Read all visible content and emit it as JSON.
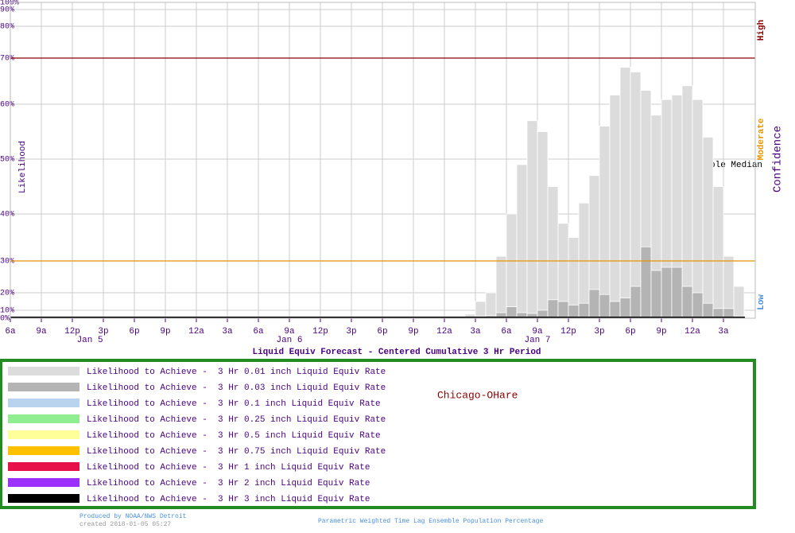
{
  "chart_data": {
    "type": "bar",
    "title": "Liquid Equiv Forecast - Centered Cumulative 3 Hr Period",
    "y_label": "Likelihood",
    "right_label": "Confidence",
    "confidence_labels": [
      {
        "text": "High",
        "color": "#8b0000"
      },
      {
        "text": "Moderate",
        "color": "#e69500"
      },
      {
        "text": "Low",
        "color": "#4a90d9"
      }
    ],
    "annotation": "Ensemble Median",
    "location": "Chicago-OHare",
    "date_labels": [
      "Jan 5",
      "Jan 6",
      "Jan 7"
    ],
    "ylim": [
      0,
      100
    ],
    "yticks": [
      {
        "value": 0,
        "label": "0%"
      },
      {
        "value": 10,
        "label": "10%"
      },
      {
        "value": 20,
        "label": "20%"
      },
      {
        "value": 30,
        "label": "30%"
      },
      {
        "value": 40,
        "label": "40%"
      },
      {
        "value": 50,
        "label": "50%"
      },
      {
        "value": 60,
        "label": "60%"
      },
      {
        "value": 70,
        "label": "70%"
      },
      {
        "value": 80,
        "label": "80%"
      },
      {
        "value": 90,
        "label": "90%"
      },
      {
        "value": 100,
        "label": "100%"
      }
    ],
    "thresholds": [
      {
        "value": 70,
        "color": "#8b0000"
      },
      {
        "value": 30,
        "color": "#e69500"
      }
    ],
    "categories": [
      "6a",
      null,
      null,
      "9a",
      null,
      null,
      "12p",
      null,
      null,
      "3p",
      null,
      null,
      "6p",
      null,
      null,
      "9p",
      null,
      null,
      "12a",
      null,
      null,
      "3a",
      null,
      null,
      "6a",
      null,
      null,
      "9a",
      null,
      null,
      "12p",
      null,
      null,
      "3p",
      null,
      null,
      "6p",
      null,
      null,
      "9p",
      null,
      null,
      "12a",
      null,
      null,
      "3a",
      null,
      null,
      "6a",
      null,
      null,
      "9a",
      null,
      null,
      "12p",
      null,
      null,
      "3p",
      null,
      null,
      "6p",
      null,
      null,
      "9p",
      null,
      null,
      "12a",
      null,
      null,
      "3a",
      null
    ],
    "series": [
      {
        "name": "Likelihood to Achieve -  3 Hr 0.01 inch Liquid Equiv Rate",
        "color": "#dcdcdc",
        "values": [
          1,
          1,
          1,
          1,
          1,
          1,
          1,
          1,
          1,
          1,
          1,
          1,
          1,
          1,
          1,
          1,
          1,
          1,
          1,
          1,
          1,
          1,
          1,
          1,
          1,
          1,
          1,
          1,
          1,
          1,
          1,
          1,
          1,
          1,
          1,
          1,
          1,
          1,
          1,
          1,
          1,
          1,
          1,
          1,
          5,
          15,
          20,
          31,
          40,
          49,
          57,
          55,
          45,
          38,
          35,
          42,
          47,
          56,
          62,
          68,
          67,
          63,
          58,
          61,
          62,
          64,
          61,
          54,
          45,
          31,
          22
        ]
      },
      {
        "name": "Likelihood to Achieve -  3 Hr 0.03 inch Liquid Equiv Rate",
        "color": "#b4b4b4",
        "values": [
          0,
          0,
          0,
          0,
          0,
          0,
          0,
          0,
          0,
          0,
          0,
          0,
          0,
          0,
          0,
          0,
          0,
          0,
          0,
          0,
          0,
          0,
          0,
          0,
          0,
          0,
          0,
          0,
          0,
          0,
          0,
          0,
          0,
          0,
          0,
          0,
          0,
          0,
          0,
          0,
          0,
          0,
          0,
          0,
          1,
          2,
          3,
          7,
          12,
          7,
          6,
          10,
          16,
          15,
          13,
          14,
          21,
          19,
          15,
          17,
          22,
          33,
          27,
          28,
          28,
          22,
          20,
          14,
          11,
          11,
          2
        ]
      },
      {
        "name": "Likelihood to Achieve -  3 Hr 0.1 inch Liquid Equiv Rate",
        "color": "#b9d3ee"
      },
      {
        "name": "Likelihood to Achieve -  3 Hr 0.25 inch Liquid Equiv Rate",
        "color": "#90ee90"
      },
      {
        "name": "Likelihood to Achieve -  3 Hr 0.5 inch Liquid Equiv Rate",
        "color": "#ffff99"
      },
      {
        "name": "Likelihood to Achieve -  3 Hr 0.75 inch Liquid Equiv Rate",
        "color": "#ffc000"
      },
      {
        "name": "Likelihood to Achieve -  3 Hr 1 inch Liquid Equiv Rate",
        "color": "#e8104a"
      },
      {
        "name": "Likelihood to Achieve -  3 Hr 2 inch Liquid Equiv Rate",
        "color": "#9b30ff"
      },
      {
        "name": "Likelihood to Achieve -  3 Hr 3 inch Liquid Equiv Rate",
        "color": "#000000"
      }
    ],
    "footer": {
      "producer": "Produced by NOAA/NWS Detroit",
      "created": "created 2018-01-05 05:27",
      "method": "Parametric Weighted Time Lag Ensemble Population Percentage"
    }
  }
}
